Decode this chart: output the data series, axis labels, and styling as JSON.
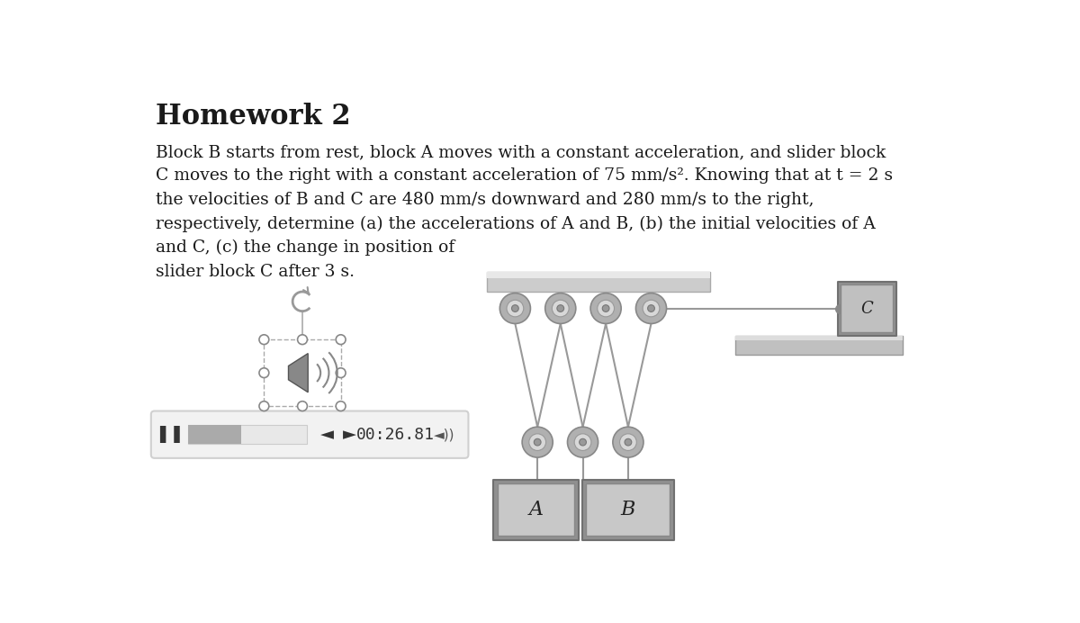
{
  "title": "Homework 2",
  "body_text": "Block B starts from rest, block A moves with a constant acceleration, and slider block\nC moves to the right with a constant acceleration of 75 mm/s². Knowing that at t = 2 s\nthe velocities of B and C are 480 mm/s downward and 280 mm/s to the right,\nrespectively, determine (a) the accelerations of A and B, (b) the initial velocities of A\nand C, (c) the change in position of\nslider block C after 3 s.",
  "timer_text": "00:26.81",
  "bg_color": "#ffffff",
  "text_color": "#1a1a1a",
  "title_fontsize": 22,
  "body_fontsize": 13.5,
  "pulley_outer_color": "#b0b0b0",
  "pulley_inner_color": "#d8d8d8",
  "pulley_hub_color": "#c0c0c0",
  "block_face_color": "#b0b0b0",
  "block_edge_color": "#888888",
  "rope_color": "#999999",
  "ceiling_color": "#cccccc",
  "ceiling_edge": "#aaaaaa",
  "slider_block_color": "#a0a0a0",
  "rail_color": "#c0c0c0",
  "player_bg": "#f2f2f2",
  "player_edge": "#d0d0d0",
  "progress_fill": "#aaaaaa",
  "progress_bg": "#e8e8e8"
}
